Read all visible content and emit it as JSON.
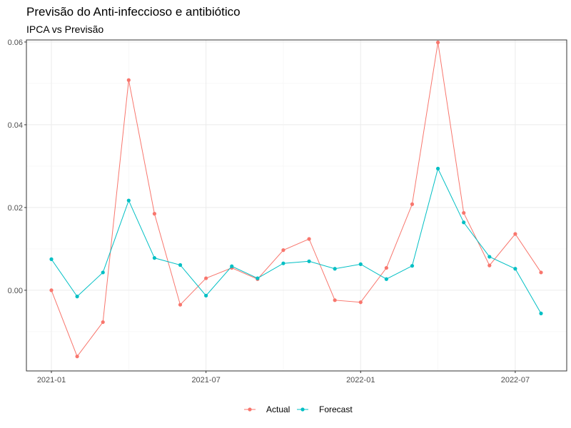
{
  "chart_data": {
    "type": "line",
    "title": "Previsão do Anti-infeccioso e antibiótico",
    "subtitle": "IPCA vs Previsão",
    "xlabel": "",
    "ylabel": "",
    "x": [
      "2021-01",
      "2021-02",
      "2021-03",
      "2021-04",
      "2021-05",
      "2021-06",
      "2021-07",
      "2021-08",
      "2021-09",
      "2021-10",
      "2021-11",
      "2021-12",
      "2022-01",
      "2022-02",
      "2022-03",
      "2022-04",
      "2022-05",
      "2022-06",
      "2022-07",
      "2022-08"
    ],
    "x_ticks": [
      "2021-01",
      "2021-07",
      "2022-01",
      "2022-07"
    ],
    "y_ticks": [
      "0.00",
      "0.02",
      "0.04",
      "0.06"
    ],
    "ylim": [
      -0.0195,
      0.0605
    ],
    "grid": true,
    "legend_position": "bottom",
    "series": [
      {
        "name": "Actual",
        "color": "#F8766D",
        "values": [
          0.0,
          -0.016,
          -0.0077,
          0.0508,
          0.0185,
          -0.0035,
          0.0029,
          0.0054,
          0.0027,
          0.0097,
          0.0124,
          -0.0024,
          -0.0029,
          0.0054,
          0.0208,
          0.0599,
          0.0187,
          0.006,
          0.0136,
          0.0043
        ]
      },
      {
        "name": "Forecast",
        "color": "#00BFC4",
        "values": [
          0.0075,
          -0.0015,
          0.0043,
          0.0217,
          0.0078,
          0.0061,
          -0.0013,
          0.0058,
          0.0029,
          0.0065,
          0.007,
          0.0052,
          0.0063,
          0.0027,
          0.0059,
          0.0294,
          0.0164,
          0.0081,
          0.0052,
          -0.0056
        ]
      }
    ]
  }
}
